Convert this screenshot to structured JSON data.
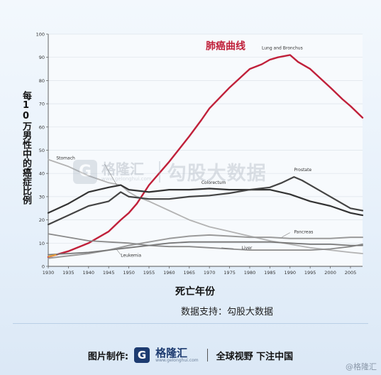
{
  "chart_data": {
    "type": "line",
    "ylabel": "每10万男性中的癌症比例",
    "xlabel": "死亡年份",
    "annotation_main": "肺癌曲线",
    "xlim": [
      1930,
      2008
    ],
    "ylim": [
      0,
      100
    ],
    "x_ticks": [
      "1930",
      "1935",
      "1940",
      "1945",
      "1950",
      "1955",
      "1960",
      "1965",
      "1970",
      "1975",
      "1980",
      "1985",
      "1990",
      "1995",
      "2000",
      "2005"
    ],
    "y_ticks": [
      "0",
      "10",
      "20",
      "30",
      "40",
      "50",
      "60",
      "70",
      "80",
      "90",
      "100"
    ],
    "series": [
      {
        "name": "Lung and Bronchus",
        "color": "#c0203a",
        "x": [
          1930,
          1935,
          1940,
          1945,
          1948,
          1950,
          1952,
          1955,
          1960,
          1965,
          1968,
          1970,
          1975,
          1980,
          1983,
          1985,
          1987,
          1990,
          1992,
          1995,
          2000,
          2003,
          2005,
          2008
        ],
        "y": [
          4,
          6.5,
          10,
          15,
          20,
          23,
          27,
          35,
          45,
          56,
          63,
          68,
          77,
          85,
          87,
          89,
          90,
          91,
          88,
          85,
          77,
          72,
          69,
          64
        ]
      },
      {
        "name": "Stomach",
        "color": "#b3b3b3",
        "x": [
          1930,
          1935,
          1940,
          1945,
          1948,
          1950,
          1952,
          1955,
          1960,
          1965,
          1970,
          1975,
          1980,
          1985,
          1990,
          1995,
          2000,
          2005,
          2008
        ],
        "y": [
          46,
          43,
          39,
          36,
          35,
          32,
          30,
          28,
          24,
          20,
          17,
          15,
          13,
          11,
          9.5,
          8,
          7,
          6,
          5.5
        ]
      },
      {
        "name": "Colorectum",
        "color": "#333333",
        "x": [
          1930,
          1935,
          1940,
          1945,
          1948,
          1950,
          1955,
          1960,
          1965,
          1970,
          1975,
          1980,
          1985,
          1990,
          1995,
          2000,
          2005,
          2008
        ],
        "y": [
          23,
          27,
          32,
          34,
          35,
          33,
          32,
          33,
          33,
          33.5,
          33,
          33,
          33,
          31,
          28,
          26,
          23,
          22
        ]
      },
      {
        "name": "Prostate",
        "color": "#444444",
        "x": [
          1930,
          1935,
          1940,
          1945,
          1948,
          1950,
          1955,
          1960,
          1965,
          1970,
          1975,
          1980,
          1985,
          1988,
          1991,
          1993,
          1995,
          2000,
          2005,
          2008
        ],
        "y": [
          18,
          22,
          26,
          28,
          32,
          30,
          29,
          29,
          30,
          30.5,
          31.5,
          33,
          34,
          36,
          38.5,
          37,
          35,
          30,
          25,
          24
        ]
      },
      {
        "name": "Pancreas",
        "color": "#9a9a9a",
        "x": [
          1930,
          1935,
          1940,
          1945,
          1950,
          1955,
          1960,
          1965,
          1970,
          1975,
          1980,
          1985,
          1990,
          1995,
          2000,
          2005,
          2008
        ],
        "y": [
          3.5,
          4.5,
          5.5,
          7,
          9,
          10.5,
          12,
          13,
          13.5,
          13,
          12.5,
          12.5,
          12,
          12,
          12,
          12.5,
          12.5
        ]
      },
      {
        "name": "Liver",
        "color": "#8a8a8a",
        "x": [
          1930,
          1935,
          1940,
          1945,
          1950,
          1955,
          1960,
          1965,
          1970,
          1975,
          1980,
          1985,
          1990,
          1995,
          2000,
          2005,
          2008
        ],
        "y": [
          14,
          12.5,
          11,
          10.5,
          10,
          9,
          8.5,
          8.5,
          8,
          7.5,
          7,
          7,
          7,
          7,
          7.5,
          8.5,
          9.5
        ]
      },
      {
        "name": "Leukemia",
        "color": "#777777",
        "x": [
          1930,
          1935,
          1940,
          1945,
          1950,
          1955,
          1960,
          1965,
          1970,
          1975,
          1980,
          1985,
          1990,
          1995,
          2000,
          2005,
          2008
        ],
        "y": [
          5,
          5.5,
          6,
          7,
          8,
          9,
          10,
          10.5,
          10.5,
          10.5,
          10.5,
          10.5,
          10,
          9.5,
          9.5,
          9,
          9
        ]
      }
    ]
  },
  "labels": {
    "source_text": "数据支持：勾股大数据",
    "footer_prefix": "图片制作:",
    "logo_text": "格隆汇",
    "logo_sub": "www.gelonghui.com",
    "slogan": "全球视野 下注中国",
    "corner_mark": "@格隆汇",
    "watermark_brand": "格隆汇",
    "watermark_sub": "www.gelonghui.com",
    "watermark_big": "勾股大数据"
  }
}
